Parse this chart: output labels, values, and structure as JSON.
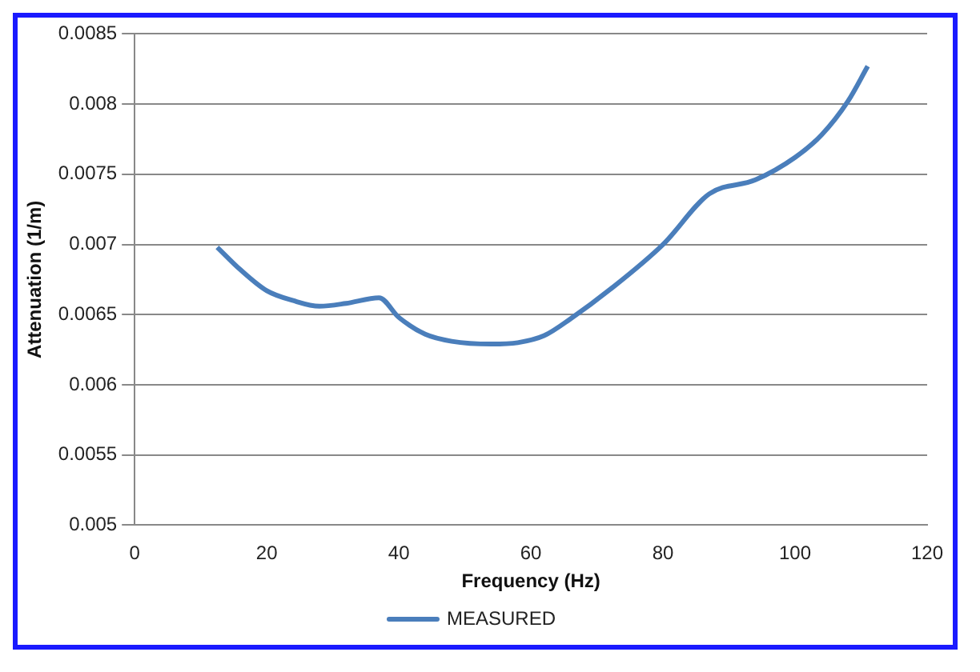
{
  "chart_data": {
    "type": "line",
    "xlabel": "Frequency (Hz)",
    "ylabel": "Attenuation (1/m)",
    "xlim": [
      0,
      120
    ],
    "xticks": [
      0,
      20,
      40,
      60,
      80,
      100,
      120
    ],
    "ylim": [
      0.005,
      0.0085
    ],
    "yticks": [
      0.005,
      0.0055,
      0.006,
      0.0065,
      0.007,
      0.0075,
      0.008,
      0.0085
    ],
    "grid": "y",
    "legend": "bottom",
    "marker": "none",
    "line_style": "solid",
    "series": [
      {
        "name": "MEASURED",
        "color": "#4a7ebb",
        "x": [
          12.5,
          16,
          20,
          24,
          28,
          32,
          37,
          40,
          44,
          48,
          54,
          58,
          62,
          66,
          72,
          80,
          87,
          94,
          100,
          104,
          108,
          111
        ],
        "values": [
          0.00698,
          0.00682,
          0.00667,
          0.0066,
          0.00656,
          0.00658,
          0.00662,
          0.00648,
          0.00636,
          0.00631,
          0.00629,
          0.0063,
          0.00635,
          0.00647,
          0.00668,
          0.007,
          0.00736,
          0.00746,
          0.00762,
          0.00778,
          0.00802,
          0.00827
        ]
      }
    ]
  }
}
